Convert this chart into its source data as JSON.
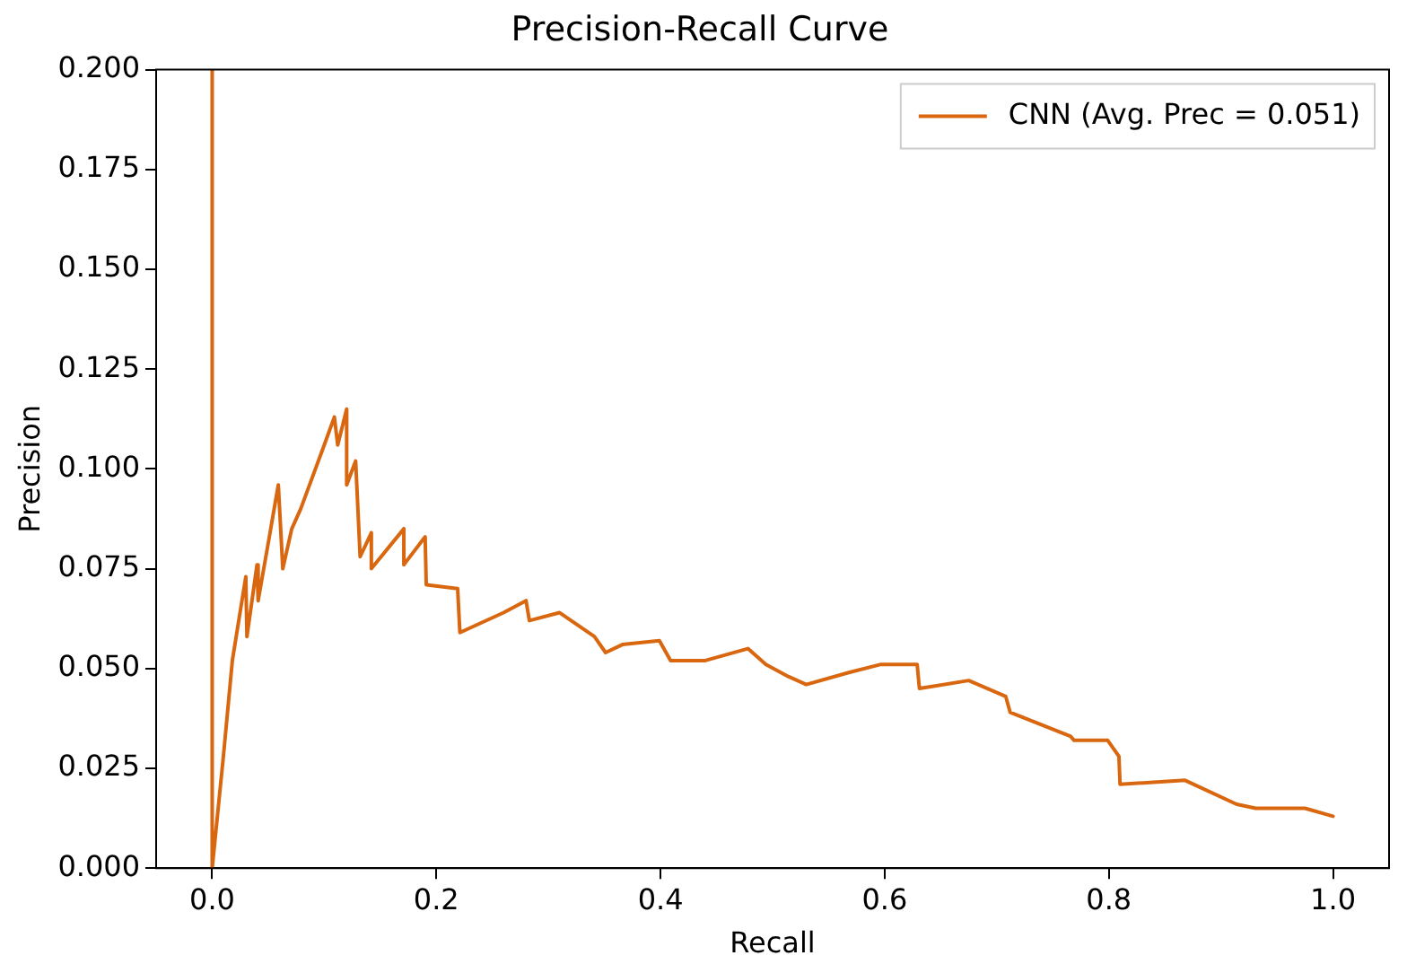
{
  "chart_data": {
    "type": "line",
    "title": "Precision-Recall Curve",
    "xlabel": "Recall",
    "ylabel": "Precision",
    "xlim": [
      -0.05,
      1.05
    ],
    "ylim": [
      0,
      0.2
    ],
    "xticks": [
      {
        "value": 0,
        "label": "0.0"
      },
      {
        "value": 0.2,
        "label": "0.2"
      },
      {
        "value": 0.4,
        "label": "0.4"
      },
      {
        "value": 0.6,
        "label": "0.6"
      },
      {
        "value": 0.8,
        "label": "0.8"
      },
      {
        "value": 1,
        "label": "1.0"
      }
    ],
    "yticks": [
      {
        "value": 0,
        "label": "0.000"
      },
      {
        "value": 0.025,
        "label": "0.025"
      },
      {
        "value": 0.05,
        "label": "0.050"
      },
      {
        "value": 0.075,
        "label": "0.075"
      },
      {
        "value": 0.1,
        "label": "0.100"
      },
      {
        "value": 0.125,
        "label": "0.125"
      },
      {
        "value": 0.15,
        "label": "0.150"
      },
      {
        "value": 0.175,
        "label": "0.175"
      },
      {
        "value": 0.2,
        "label": "0.200"
      }
    ],
    "grid": false,
    "legend": "top right",
    "marker": "none",
    "line_style": "solid",
    "series": [
      {
        "name": "CNN (Avg. Prec = 0.051)",
        "color": "#d9670f",
        "x": [
          0,
          0,
          0.01,
          0.018,
          0.03,
          0.031,
          0.04,
          0.041,
          0.051,
          0.059,
          0.063,
          0.071,
          0.079,
          0.1,
          0.109,
          0.112,
          0.12,
          0.12,
          0.128,
          0.132,
          0.142,
          0.142,
          0.171,
          0.171,
          0.19,
          0.191,
          0.219,
          0.221,
          0.26,
          0.28,
          0.283,
          0.31,
          0.341,
          0.351,
          0.366,
          0.399,
          0.409,
          0.44,
          0.478,
          0.494,
          0.514,
          0.53,
          0.568,
          0.596,
          0.629,
          0.631,
          0.675,
          0.708,
          0.712,
          0.766,
          0.769,
          0.799,
          0.809,
          0.81,
          0.868,
          0.914,
          0.931,
          0.975,
          1.0
        ],
        "values": [
          0.2,
          0,
          0.028,
          0.052,
          0.073,
          0.058,
          0.076,
          0.067,
          0.083,
          0.096,
          0.075,
          0.085,
          0.09,
          0.106,
          0.113,
          0.106,
          0.115,
          0.096,
          0.102,
          0.078,
          0.084,
          0.075,
          0.085,
          0.076,
          0.083,
          0.071,
          0.07,
          0.059,
          0.064,
          0.067,
          0.062,
          0.064,
          0.058,
          0.054,
          0.056,
          0.057,
          0.052,
          0.052,
          0.055,
          0.051,
          0.048,
          0.046,
          0.049,
          0.051,
          0.051,
          0.045,
          0.047,
          0.043,
          0.039,
          0.033,
          0.032,
          0.032,
          0.028,
          0.021,
          0.022,
          0.016,
          0.015,
          0.015,
          0.013
        ]
      }
    ]
  }
}
